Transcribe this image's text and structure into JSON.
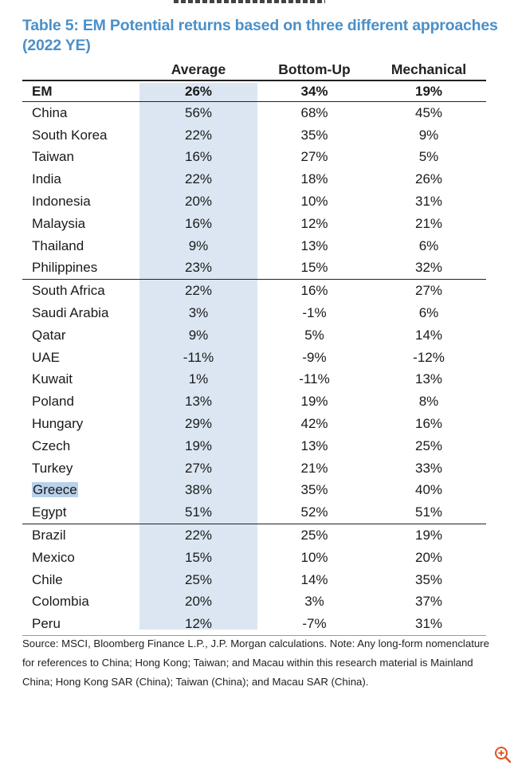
{
  "title": "Table 5: EM Potential returns based on three different approaches (2022 YE)",
  "columns": [
    "",
    "Average",
    "Bottom-Up",
    "Mechanical"
  ],
  "em_row": {
    "country": "EM",
    "average": "26%",
    "bottom_up": "34%",
    "mechanical": "19%"
  },
  "groups": [
    [
      {
        "country": "China",
        "average": "56%",
        "bottom_up": "68%",
        "mechanical": "45%"
      },
      {
        "country": "South Korea",
        "average": "22%",
        "bottom_up": "35%",
        "mechanical": "9%"
      },
      {
        "country": "Taiwan",
        "average": "16%",
        "bottom_up": "27%",
        "mechanical": "5%"
      },
      {
        "country": "India",
        "average": "22%",
        "bottom_up": "18%",
        "mechanical": "26%"
      },
      {
        "country": "Indonesia",
        "average": "20%",
        "bottom_up": "10%",
        "mechanical": "31%"
      },
      {
        "country": "Malaysia",
        "average": "16%",
        "bottom_up": "12%",
        "mechanical": "21%"
      },
      {
        "country": "Thailand",
        "average": "9%",
        "bottom_up": "13%",
        "mechanical": "6%"
      },
      {
        "country": "Philippines",
        "average": "23%",
        "bottom_up": "15%",
        "mechanical": "32%"
      }
    ],
    [
      {
        "country": "South Africa",
        "average": "22%",
        "bottom_up": "16%",
        "mechanical": "27%"
      },
      {
        "country": "Saudi Arabia",
        "average": "3%",
        "bottom_up": "-1%",
        "mechanical": "6%"
      },
      {
        "country": "Qatar",
        "average": "9%",
        "bottom_up": "5%",
        "mechanical": "14%"
      },
      {
        "country": "UAE",
        "average": "-11%",
        "bottom_up": "-9%",
        "mechanical": "-12%"
      },
      {
        "country": "Kuwait",
        "average": "1%",
        "bottom_up": "-11%",
        "mechanical": "13%"
      },
      {
        "country": "Poland",
        "average": "13%",
        "bottom_up": "19%",
        "mechanical": "8%"
      },
      {
        "country": "Hungary",
        "average": "29%",
        "bottom_up": "42%",
        "mechanical": "16%"
      },
      {
        "country": "Czech",
        "average": "19%",
        "bottom_up": "13%",
        "mechanical": "25%"
      },
      {
        "country": "Turkey",
        "average": "27%",
        "bottom_up": "21%",
        "mechanical": "33%"
      },
      {
        "country": "Greece",
        "average": "38%",
        "bottom_up": "35%",
        "mechanical": "40%",
        "highlighted": true
      },
      {
        "country": "Egypt",
        "average": "51%",
        "bottom_up": "52%",
        "mechanical": "51%"
      }
    ],
    [
      {
        "country": "Brazil",
        "average": "22%",
        "bottom_up": "25%",
        "mechanical": "19%"
      },
      {
        "country": "Mexico",
        "average": "15%",
        "bottom_up": "10%",
        "mechanical": "20%"
      },
      {
        "country": "Chile",
        "average": "25%",
        "bottom_up": "14%",
        "mechanical": "35%"
      },
      {
        "country": "Colombia",
        "average": "20%",
        "bottom_up": "3%",
        "mechanical": "37%"
      },
      {
        "country": "Peru",
        "average": "12%",
        "bottom_up": "-7%",
        "mechanical": "31%"
      }
    ]
  ],
  "source_note": "Source: MSCI, Bloomberg Finance L.P., J.P. Morgan calculations. Note: Any long-form nomenclature for references to China; Hong Kong; Taiwan; and Macau within this research material is Mainland China; Hong Kong SAR (China); Taiwan (China); and Macau SAR (China).",
  "icons": {
    "zoom": "zoom-in-icon"
  },
  "colors": {
    "title": "#4a90c9",
    "average_shade": "#dbe6f2",
    "highlight": "#b9d1ea",
    "zoom_icon": "#e0541e"
  }
}
